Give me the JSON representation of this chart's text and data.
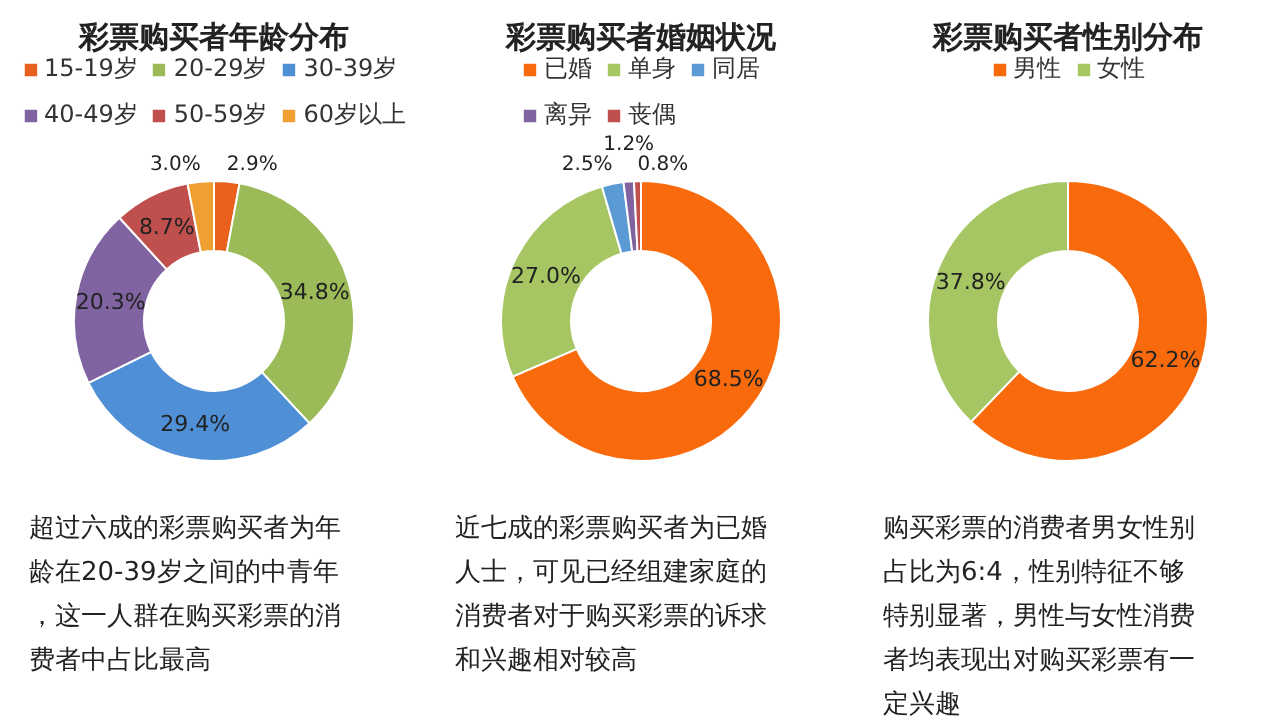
{
  "chart_data": [
    {
      "type": "donut",
      "title": "彩票购买者年龄分布",
      "categories": [
        "15-19岁",
        "20-29岁",
        "30-39岁",
        "40-49岁",
        "50-59岁",
        "60岁以上"
      ],
      "values": [
        2.9,
        34.8,
        29.4,
        20.3,
        8.7,
        3.0
      ],
      "colors": [
        "#e8601c",
        "#9bbb59",
        "#4f8fd6",
        "#8064a2",
        "#c0504d",
        "#f0a030"
      ],
      "value_labels": [
        "2.9%",
        "34.8%",
        "29.4%",
        "20.3%",
        "8.7%",
        "3.0%"
      ],
      "legend": "top",
      "annotations": [
        "超过六成的彩票购买者为年龄在20-39岁之间的中青年，这一人群在购买彩票的消费者中占比最高"
      ]
    },
    {
      "type": "donut",
      "title": "彩票购买者婚姻状况",
      "categories": [
        "已婚",
        "单身",
        "同居",
        "离异",
        "丧偶"
      ],
      "values": [
        68.5,
        27.0,
        2.5,
        1.2,
        0.8
      ],
      "colors": [
        "#f96a0c",
        "#a5c663",
        "#5b9bd5",
        "#8064a2",
        "#c0504d"
      ],
      "value_labels": [
        "68.5%",
        "27.0%",
        "2.5%",
        "1.2%",
        "0.8%"
      ],
      "legend": "top",
      "annotations": [
        "近七成的彩票购买者为已婚人士，可见已经组建家庭的消费者对于购买彩票的诉求和兴趣相对较高"
      ]
    },
    {
      "type": "donut",
      "title": "彩票购买者性别分布",
      "categories": [
        "男性",
        "女性"
      ],
      "values": [
        62.2,
        37.8
      ],
      "colors": [
        "#f96a0c",
        "#a5c663"
      ],
      "value_labels": [
        "62.2%",
        "37.8%"
      ],
      "legend": "top",
      "annotations": [
        "购买彩票的消费者男女性别占比为6:4，性别特征不够特别显著，男性与女性消费者均表现出对购买彩票有一定兴趣"
      ]
    }
  ]
}
